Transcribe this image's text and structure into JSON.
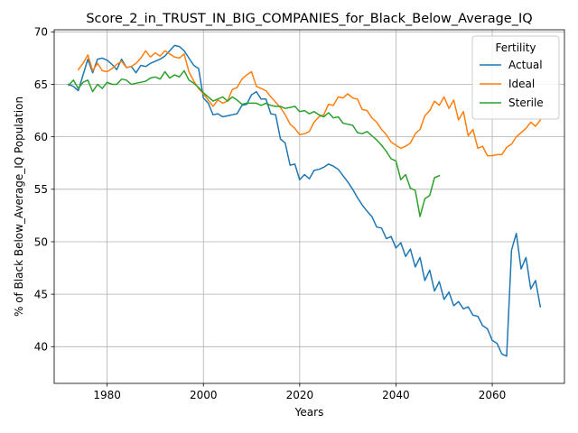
{
  "chart_data": {
    "type": "line",
    "title": "Score_2_in_TRUST_IN_BIG_COMPANIES_for_Black_Below_Average_IQ",
    "xlabel": "Years",
    "ylabel": "% of Black Below_Average_IQ Population",
    "xlim": [
      1969,
      2075
    ],
    "ylim": [
      36.5,
      70.2
    ],
    "xticks": [
      1980,
      2000,
      2020,
      2040,
      2060
    ],
    "yticks": [
      40,
      45,
      50,
      55,
      60,
      65,
      70
    ],
    "grid": true,
    "legend": {
      "title": "Fertility",
      "position": "top-right"
    },
    "series": [
      {
        "name": "Actual",
        "color": "#1f77b4",
        "x": [
          1972,
          1973,
          1974,
          1975,
          1976,
          1977,
          1978,
          1979,
          1980,
          1981,
          1982,
          1983,
          1984,
          1985,
          1986,
          1987,
          1988,
          1989,
          1990,
          1991,
          1992,
          1993,
          1994,
          1995,
          1996,
          1997,
          1998,
          1999,
          2000,
          2001,
          2002,
          2003,
          2004,
          2005,
          2006,
          2007,
          2008,
          2009,
          2010,
          2011,
          2012,
          2013,
          2014,
          2015,
          2016,
          2017,
          2018,
          2019,
          2020,
          2021,
          2022,
          2023,
          2024,
          2025,
          2026,
          2027,
          2028,
          2029,
          2030,
          2031,
          2032,
          2033,
          2034,
          2035,
          2036,
          2037,
          2038,
          2039,
          2040,
          2041,
          2042,
          2043,
          2044,
          2045,
          2046,
          2047,
          2048,
          2049,
          2050,
          2051,
          2052,
          2053,
          2054,
          2055,
          2056,
          2057,
          2058,
          2059,
          2060,
          2061,
          2062,
          2063,
          2064,
          2065,
          2066,
          2067,
          2068,
          2069,
          2070
        ],
        "y": [
          65.0,
          64.8,
          64.4,
          65.9,
          67.4,
          66.1,
          67.4,
          67.5,
          67.3,
          66.9,
          66.4,
          67.4,
          66.6,
          66.7,
          66.1,
          66.8,
          66.7,
          67.0,
          67.2,
          67.4,
          67.7,
          68.2,
          68.7,
          68.6,
          68.2,
          67.5,
          66.8,
          66.5,
          63.7,
          63.2,
          62.1,
          62.2,
          61.9,
          62.0,
          62.1,
          62.2,
          63.0,
          63.1,
          64.0,
          64.3,
          63.6,
          63.6,
          62.2,
          62.1,
          59.8,
          59.4,
          57.3,
          57.4,
          55.9,
          56.4,
          56.0,
          56.8,
          56.9,
          57.1,
          57.4,
          57.2,
          56.9,
          56.3,
          55.7,
          55.0,
          54.2,
          53.5,
          52.9,
          52.4,
          51.4,
          51.3,
          50.3,
          50.5,
          49.4,
          49.9,
          48.6,
          49.3,
          47.6,
          48.5,
          46.3,
          47.3,
          45.3,
          46.2,
          44.5,
          45.2,
          43.9,
          44.3,
          43.6,
          43.8,
          43.0,
          42.9,
          42.0,
          41.7,
          40.6,
          40.3,
          39.3,
          39.1,
          49.2,
          50.8,
          47.4,
          48.5,
          45.5,
          46.3,
          43.8
        ]
      },
      {
        "name": "Ideal",
        "color": "#ff7f0e",
        "x": [
          1974,
          1975,
          1976,
          1977,
          1978,
          1979,
          1980,
          1981,
          1982,
          1983,
          1984,
          1985,
          1986,
          1987,
          1988,
          1989,
          1990,
          1991,
          1992,
          1993,
          1994,
          1995,
          1996,
          1997,
          1998,
          1999,
          2000,
          2001,
          2002,
          2003,
          2004,
          2005,
          2006,
          2007,
          2008,
          2009,
          2010,
          2011,
          2012,
          2013,
          2014,
          2015,
          2016,
          2017,
          2018,
          2019,
          2020,
          2021,
          2022,
          2023,
          2024,
          2025,
          2026,
          2027,
          2028,
          2029,
          2030,
          2031,
          2032,
          2033,
          2034,
          2035,
          2036,
          2037,
          2038,
          2039,
          2040,
          2041,
          2042,
          2043,
          2044,
          2045,
          2046,
          2047,
          2048,
          2049,
          2050,
          2051,
          2052,
          2053,
          2054,
          2055,
          2056,
          2057,
          2058,
          2059,
          2060,
          2061,
          2062,
          2063,
          2064,
          2065,
          2066,
          2067,
          2068,
          2069,
          2070
        ],
        "y": [
          66.4,
          67.0,
          67.8,
          66.3,
          67.0,
          66.3,
          66.2,
          66.5,
          66.9,
          67.2,
          66.6,
          66.7,
          67.0,
          67.5,
          68.2,
          67.6,
          68.0,
          67.7,
          68.2,
          67.9,
          67.6,
          67.5,
          67.9,
          66.2,
          65.3,
          64.6,
          64.1,
          63.5,
          62.9,
          63.5,
          63.2,
          63.4,
          64.5,
          64.7,
          65.5,
          65.9,
          66.2,
          64.8,
          64.6,
          64.4,
          63.8,
          63.3,
          62.8,
          62.1,
          61.2,
          60.8,
          60.2,
          60.3,
          60.5,
          61.4,
          61.9,
          62.1,
          63.1,
          63.0,
          63.8,
          63.7,
          64.1,
          63.7,
          63.6,
          62.6,
          62.5,
          61.8,
          61.4,
          60.7,
          60.2,
          59.5,
          59.2,
          58.9,
          59.1,
          59.4,
          60.3,
          60.7,
          62.0,
          62.5,
          63.4,
          63.0,
          63.8,
          62.7,
          63.5,
          61.6,
          62.4,
          60.1,
          60.7,
          58.9,
          59.1,
          58.2,
          58.2,
          58.3,
          58.3,
          59.0,
          59.3,
          60.0,
          60.4,
          60.8,
          61.4,
          61.0,
          61.6
        ]
      },
      {
        "name": "Sterile",
        "color": "#2ca02c",
        "x": [
          1972,
          1973,
          1974,
          1975,
          1976,
          1977,
          1978,
          1979,
          1980,
          1981,
          1982,
          1983,
          1984,
          1985,
          1986,
          1987,
          1988,
          1989,
          1990,
          1991,
          1992,
          1993,
          1994,
          1995,
          1996,
          1997,
          1998,
          1999,
          2000,
          2001,
          2002,
          2003,
          2004,
          2005,
          2006,
          2007,
          2008,
          2009,
          2010,
          2011,
          2012,
          2013,
          2014,
          2015,
          2016,
          2017,
          2018,
          2019,
          2020,
          2021,
          2022,
          2023,
          2024,
          2025,
          2026,
          2027,
          2028,
          2029,
          2030,
          2031,
          2032,
          2033,
          2034,
          2035,
          2036,
          2037,
          2038,
          2039,
          2040,
          2041,
          2042,
          2043,
          2044,
          2045,
          2046,
          2047,
          2048,
          2049
        ],
        "y": [
          64.9,
          65.4,
          64.6,
          65.2,
          65.4,
          64.3,
          65.0,
          64.6,
          65.2,
          65.0,
          65.0,
          65.5,
          65.4,
          65.0,
          65.1,
          65.2,
          65.3,
          65.6,
          65.7,
          65.5,
          66.2,
          65.6,
          65.9,
          65.7,
          66.3,
          65.4,
          65.1,
          64.7,
          64.2,
          63.8,
          63.4,
          63.6,
          63.8,
          63.4,
          63.8,
          63.5,
          63.1,
          63.2,
          63.2,
          63.2,
          63.0,
          63.2,
          63.0,
          62.9,
          62.9,
          62.7,
          62.8,
          62.9,
          62.4,
          62.5,
          62.2,
          62.4,
          62.1,
          61.9,
          62.3,
          61.8,
          61.9,
          61.3,
          61.2,
          61.1,
          60.4,
          60.3,
          60.5,
          60.1,
          59.7,
          59.2,
          58.6,
          57.9,
          57.7,
          55.9,
          56.4,
          55.1,
          54.9,
          52.4,
          54.1,
          54.4,
          56.1,
          56.3
        ]
      }
    ]
  }
}
